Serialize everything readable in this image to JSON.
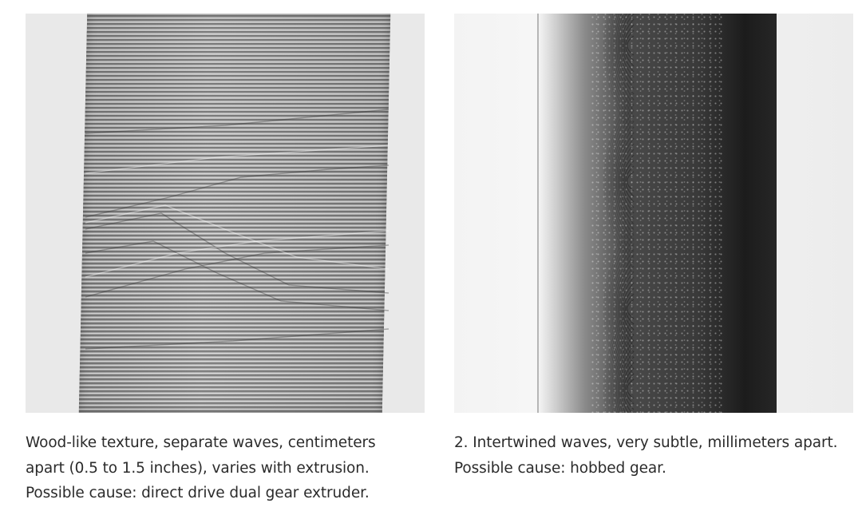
{
  "figures": [
    {
      "caption_lines": [
        "Wood-like texture, separate waves, centimeters",
        "apart (0.5 to 1.5 inches), varies with extrusion.",
        "Possible cause: direct drive dual gear extruder."
      ]
    },
    {
      "caption_lines": [
        "2. Intertwined waves, very subtle, millimeters apart.",
        "Possible cause: hobbed gear."
      ]
    }
  ]
}
